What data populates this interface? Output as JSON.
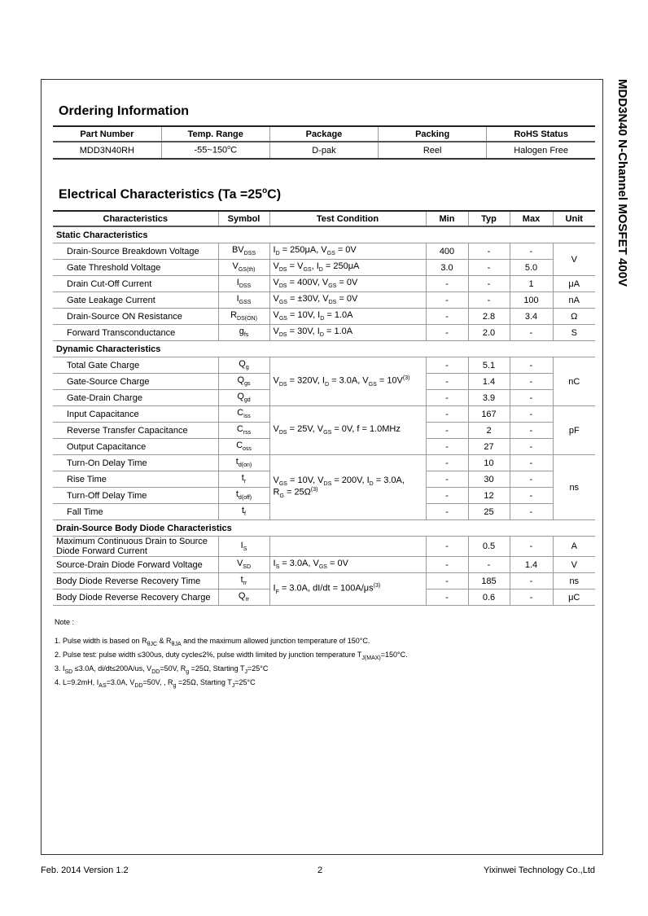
{
  "side_title": "MDD3N40 N-Channel MOSFET 400V",
  "ordering": {
    "title": "Ordering Information",
    "headers": [
      "Part Number",
      "Temp. Range",
      "Package",
      "Packing",
      "RoHS Status"
    ],
    "rows": [
      [
        "MDD3N40RH",
        "-55~150^{o}C",
        "D-pak",
        "Reel",
        "Halogen Free"
      ]
    ]
  },
  "electrical": {
    "title": "Electrical Characteristics (Ta =25",
    "title_sup": "o",
    "title_end": "C)",
    "headers": [
      "Characteristics",
      "Symbol",
      "Test Condition",
      "Min",
      "Typ",
      "Max",
      "Unit"
    ],
    "sections": [
      {
        "title": "Static Characteristics",
        "indent": true,
        "rows": [
          {
            "name": "Drain-Source Breakdown Voltage",
            "symbol": "BV_{DSS}",
            "cond": "I_{D} = 250μA, V_{GS} = 0V",
            "cspan": 1,
            "min": "400",
            "typ": "-",
            "max": "-",
            "unit": "V",
            "uspan": 2
          },
          {
            "name": "Gate Threshold Voltage",
            "symbol": "V_{GS(th)}",
            "cond": "V_{DS} = V_{GS}, I_{D} = 250μA",
            "cspan": 1,
            "min": "3.0",
            "typ": "-",
            "max": "5.0"
          },
          {
            "name": "Drain Cut-Off Current",
            "symbol": "I_{DSS}",
            "cond": "V_{DS} = 400V, V_{GS} = 0V",
            "cspan": 1,
            "min": "-",
            "typ": "-",
            "max": "1",
            "unit": "μA",
            "uspan": 1
          },
          {
            "name": "Gate Leakage Current",
            "symbol": "I_{GSS}",
            "cond": "V_{GS} = ±30V, V_{DS} = 0V",
            "cspan": 1,
            "min": "-",
            "typ": "-",
            "max": "100",
            "unit": "nA",
            "uspan": 1
          },
          {
            "name": "Drain-Source ON Resistance",
            "symbol": "R_{DS(ON)}",
            "cond": "V_{GS} = 10V, I_{D} = 1.0A",
            "cspan": 1,
            "min": "-",
            "typ": "2.8",
            "max": "3.4",
            "unit": "Ω",
            "uspan": 1
          },
          {
            "name": "Forward Transconductance",
            "symbol": "g_{fs}",
            "cond": "V_{DS} = 30V, I_{D} = 1.0A",
            "cspan": 1,
            "min": "-",
            "typ": "2.0",
            "max": "-",
            "unit": "S",
            "uspan": 1
          }
        ]
      },
      {
        "title": "Dynamic Characteristics",
        "indent": true,
        "rows": [
          {
            "name": "Total Gate Charge",
            "symbol": "Q_{g}",
            "cond": "V_{DS} = 320V, I_{D} = 3.0A, V_{GS} = 10V^{(3)}",
            "cspan": 3,
            "min": "-",
            "typ": "5.1",
            "max": "-",
            "unit": "nC",
            "uspan": 3
          },
          {
            "name": "Gate-Source Charge",
            "symbol": "Q_{gs}",
            "min": "-",
            "typ": "1.4",
            "max": "-"
          },
          {
            "name": "Gate-Drain Charge",
            "symbol": "Q_{gd}",
            "min": "-",
            "typ": "3.9",
            "max": "-"
          },
          {
            "name": "Input Capacitance",
            "symbol": "C_{iss}",
            "cond": "V_{DS} = 25V, V_{GS} = 0V, f = 1.0MHz",
            "cspan": 3,
            "min": "-",
            "typ": "167",
            "max": "-",
            "unit": "pF",
            "uspan": 3
          },
          {
            "name": "Reverse Transfer Capacitance",
            "symbol": "C_{rss}",
            "min": "-",
            "typ": "2",
            "max": "-"
          },
          {
            "name": "Output Capacitance",
            "symbol": "C_{oss}",
            "min": "-",
            "typ": "27",
            "max": "-"
          },
          {
            "name": "Turn-On   Delay Time",
            "symbol": "t_{d(on)}",
            "cond": "V_{GS} = 10V, V_{DS} = 200V, I_{D} = 3.0A,|R_{G} = 25Ω^{(3)}",
            "cspan": 4,
            "min": "-",
            "typ": "10",
            "max": "-",
            "unit": "ns",
            "uspan": 4
          },
          {
            "name": "Rise Time",
            "symbol": "t_{r}",
            "min": "-",
            "typ": "30",
            "max": "-"
          },
          {
            "name": "Turn-Off Delay Time",
            "symbol": "t_{d(off)}",
            "min": "-",
            "typ": "12",
            "max": "-"
          },
          {
            "name": "Fall Time",
            "symbol": "t_{f}",
            "min": "-",
            "typ": "25",
            "max": "-"
          }
        ]
      },
      {
        "title": "Drain-Source Body Diode Characteristics",
        "indent": false,
        "rows": [
          {
            "name": "Maximum Continuous Drain to Source Diode Forward Current",
            "tall": true,
            "symbol": "I_{S}",
            "cond": "",
            "cspan": 1,
            "min": "-",
            "typ": "0.5",
            "max": "-",
            "unit": "A",
            "uspan": 1
          },
          {
            "name": "Source-Drain Diode Forward Voltage",
            "symbol": "V_{SD}",
            "cond": "I_{S} = 3.0A, V_{GS} = 0V",
            "cspan": 1,
            "min": "-",
            "typ": "-",
            "max": "1.4",
            "unit": "V",
            "uspan": 1
          },
          {
            "name": "Body Diode Reverse Recovery Time",
            "symbol": "t_{rr}",
            "cond": "I_{F} = 3.0A, dI/dt = 100A/μs^{(3)}",
            "cspan": 2,
            "min": "-",
            "typ": "185",
            "max": "-",
            "unit": "ns",
            "uspan": 1
          },
          {
            "name": "Body Diode Reverse Recovery Charge",
            "symbol": "Q_{rr}",
            "min": "-",
            "typ": "0.6",
            "max": "-",
            "unit": "μC",
            "uspan": 1
          }
        ]
      }
    ]
  },
  "notes": {
    "label": "Note :",
    "items": [
      "1. Pulse width is based on R_{θJC} & R_{θJA} and the maximum allowed junction temperature of 150°C.",
      "2. Pulse test: pulse width  ≤300us, duty cycle≤2%, pulse width limited by junction temperature T_{J(MAX)}=150°C.",
      "3. I_{SD} ≤3.0A, di/dt≤200A/us, V_{DD}=50V, R_{g} =25Ω, Starting T_{J}=25°C",
      "4. L=9.2mH, I_{AS}=3.0A, V_{DD}=50V, , R_{g} =25Ω, Starting T_{J}=25°C"
    ]
  },
  "footer": {
    "left": "Feb. 2014 Version 1.2",
    "center": "2",
    "right": "Yixinwei Technology Co.,Ltd"
  }
}
